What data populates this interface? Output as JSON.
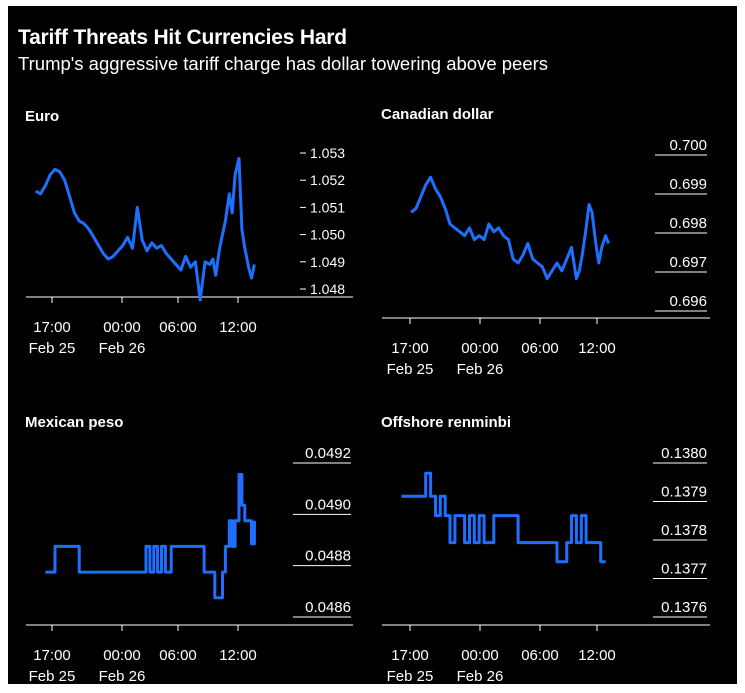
{
  "header": {
    "title": "Tariff Threats Hit Currencies Hard",
    "subtitle": "Trump's aggressive tariff charge has dollar towering above peers"
  },
  "colors": {
    "line": "#1f6fff",
    "background": "#000000",
    "text": "#ffffff",
    "axis": "#ffffff"
  },
  "chart_data": [
    {
      "type": "line",
      "title": "Euro",
      "x_ticks": [
        "17:00",
        "00:00",
        "06:00",
        "12:00"
      ],
      "x_tick_sublabels": [
        "Feb 25",
        "Feb 26",
        "",
        ""
      ],
      "x_range": [
        15,
        40
      ],
      "y_ticks": [
        "1.053",
        "1.052",
        "1.051",
        "1.050",
        "1.049",
        "1.048"
      ],
      "y_tick_values": [
        1.053,
        1.052,
        1.051,
        1.05,
        1.049,
        1.048
      ],
      "ylim": [
        1.0473,
        1.0537
      ],
      "y_tick_style": "dash",
      "grid": false,
      "series": [
        {
          "x": [
            16.0,
            16.5,
            17.0,
            17.5,
            18.0,
            18.5,
            19.0,
            19.5,
            20.0,
            20.5,
            21.0,
            21.5,
            22.0,
            22.5,
            23.0,
            23.5,
            24.0,
            24.5,
            25.0,
            25.5,
            26.0,
            26.5,
            27.0,
            27.5,
            28.0,
            28.5,
            29.0,
            29.5,
            30.0,
            30.5,
            31.0,
            31.5,
            32.0,
            32.5,
            33.0,
            33.5,
            34.0,
            34.3,
            34.6,
            35.0,
            35.3,
            35.6,
            36.0,
            36.3,
            36.6,
            37.0,
            37.3,
            37.6,
            38.0,
            38.3,
            38.6
          ],
          "y": [
            1.0516,
            1.0515,
            1.0518,
            1.0522,
            1.0524,
            1.0523,
            1.052,
            1.0514,
            1.0508,
            1.0505,
            1.0504,
            1.0502,
            1.0499,
            1.0496,
            1.0493,
            1.0491,
            1.0492,
            1.0494,
            1.0496,
            1.0499,
            1.0495,
            1.051,
            1.0498,
            1.0494,
            1.0497,
            1.0495,
            1.0496,
            1.0493,
            1.0491,
            1.0489,
            1.0487,
            1.0492,
            1.0488,
            1.049,
            1.0476,
            1.049,
            1.0489,
            1.0491,
            1.0485,
            1.0495,
            1.05,
            1.0505,
            1.0515,
            1.0508,
            1.0522,
            1.0528,
            1.0502,
            1.0495,
            1.0488,
            1.0484,
            1.0489
          ]
        }
      ]
    },
    {
      "type": "line",
      "title": "Canadian dollar",
      "x_ticks": [
        "17:00",
        "00:00",
        "06:00",
        "12:00"
      ],
      "x_tick_sublabels": [
        "Feb 25",
        "Feb 26",
        "",
        ""
      ],
      "x_range": [
        15,
        40
      ],
      "y_ticks": [
        "0.700",
        "0.699",
        "0.698",
        "0.697",
        "0.696"
      ],
      "y_tick_values": [
        0.7,
        0.699,
        0.698,
        0.697,
        0.696
      ],
      "ylim": [
        0.6956,
        0.7004
      ],
      "y_tick_style": "gridline",
      "grid": false,
      "series": [
        {
          "x": [
            18.0,
            18.5,
            19.0,
            19.5,
            20.0,
            20.5,
            21.0,
            21.5,
            22.0,
            22.5,
            23.0,
            23.5,
            24.0,
            24.5,
            25.0,
            25.5,
            26.0,
            26.5,
            27.0,
            27.5,
            28.0,
            28.5,
            29.0,
            29.5,
            30.0,
            30.5,
            31.0,
            31.5,
            32.0,
            32.5,
            33.0,
            33.5,
            34.0,
            34.5,
            35.0,
            35.3,
            35.6,
            36.0,
            36.3,
            36.6,
            37.0,
            37.3,
            37.6,
            38.0,
            38.3
          ],
          "y": [
            0.6983,
            0.6984,
            0.6987,
            0.699,
            0.6992,
            0.6989,
            0.6987,
            0.6984,
            0.698,
            0.6979,
            0.6978,
            0.6977,
            0.6979,
            0.6976,
            0.6977,
            0.6976,
            0.698,
            0.6978,
            0.6979,
            0.6977,
            0.6976,
            0.6971,
            0.697,
            0.6972,
            0.6975,
            0.6971,
            0.697,
            0.6969,
            0.6966,
            0.6968,
            0.697,
            0.6968,
            0.6971,
            0.6974,
            0.6966,
            0.6968,
            0.6972,
            0.6979,
            0.6985,
            0.6983,
            0.6975,
            0.697,
            0.6974,
            0.6977,
            0.6975
          ]
        }
      ]
    },
    {
      "type": "line",
      "title": "Mexican peso",
      "x_ticks": [
        "17:00",
        "00:00",
        "06:00",
        "12:00"
      ],
      "x_tick_sublabels": [
        "Feb 25",
        "Feb 26",
        "",
        ""
      ],
      "x_range": [
        15,
        40
      ],
      "y_ticks": [
        "0.0492",
        "0.0490",
        "0.0488",
        "0.0486"
      ],
      "y_tick_values": [
        0.0492,
        0.049,
        0.0488,
        0.0486
      ],
      "ylim": [
        0.04849,
        0.04929
      ],
      "y_tick_style": "gridline",
      "grid": false,
      "series": [
        {
          "x": [
            17.0,
            17.5,
            18.0,
            19.0,
            20.0,
            20.5,
            21.0,
            22.0,
            23.0,
            24.0,
            25.0,
            26.0,
            27.0,
            27.4,
            27.8,
            28.2,
            28.6,
            29.0,
            29.4,
            30.0,
            31.0,
            31.5,
            32.0,
            32.5,
            33.0,
            33.4,
            33.8,
            34.5,
            35.0,
            35.3,
            35.6,
            36.0,
            36.3,
            36.6,
            37.0,
            37.3,
            37.6,
            38.0,
            38.3,
            38.6
          ],
          "y": [
            0.04874,
            0.04874,
            0.04884,
            0.04884,
            0.04884,
            0.04874,
            0.04874,
            0.04874,
            0.04874,
            0.04874,
            0.04874,
            0.04874,
            0.04874,
            0.04884,
            0.04874,
            0.04884,
            0.04874,
            0.04884,
            0.04874,
            0.04884,
            0.04884,
            0.04884,
            0.04884,
            0.04884,
            0.04884,
            0.04874,
            0.04874,
            0.04864,
            0.04864,
            0.04874,
            0.04884,
            0.04894,
            0.04884,
            0.04894,
            0.04912,
            0.049,
            0.04894,
            0.04894,
            0.04885,
            0.04894
          ]
        }
      ]
    },
    {
      "type": "line",
      "title": "Offshore renminbi",
      "x_ticks": [
        "17:00",
        "00:00",
        "06:00",
        "12:00"
      ],
      "x_tick_sublabels": [
        "Feb 25",
        "Feb 26",
        "",
        ""
      ],
      "x_range": [
        15,
        40
      ],
      "y_ticks": [
        "0.1380",
        "0.1379",
        "0.1378",
        "0.1377",
        "0.1376"
      ],
      "y_tick_values": [
        0.138,
        0.1379,
        0.1378,
        0.1377,
        0.1376
      ],
      "ylim": [
        0.13755,
        0.13802
      ],
      "y_tick_style": "gridline",
      "grid": false,
      "series": [
        {
          "x": [
            17.0,
            18.0,
            19.0,
            19.5,
            20.0,
            20.5,
            21.0,
            21.5,
            22.0,
            22.5,
            23.0,
            23.5,
            24.0,
            24.5,
            25.0,
            25.5,
            26.0,
            26.5,
            27.0,
            28.0,
            29.0,
            30.0,
            31.0,
            32.0,
            32.5,
            33.0,
            33.5,
            34.0,
            34.5,
            35.0,
            35.5,
            36.0,
            36.5,
            37.0,
            37.5,
            38.0
          ],
          "y": [
            0.13789,
            0.13789,
            0.13789,
            0.13795,
            0.13789,
            0.13784,
            0.13789,
            0.13784,
            0.13777,
            0.13784,
            0.13784,
            0.13777,
            0.13784,
            0.13777,
            0.13784,
            0.13777,
            0.13777,
            0.13784,
            0.13784,
            0.13784,
            0.13777,
            0.13777,
            0.13777,
            0.13777,
            0.13777,
            0.13772,
            0.13772,
            0.13777,
            0.13784,
            0.13777,
            0.13784,
            0.13777,
            0.13777,
            0.13777,
            0.13772,
            0.13772
          ]
        }
      ]
    }
  ]
}
